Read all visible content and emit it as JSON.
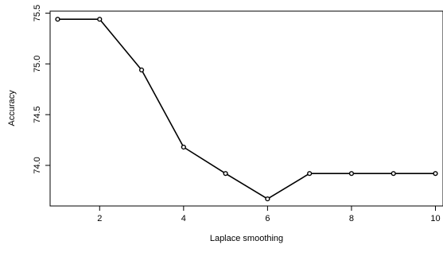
{
  "chart_data": {
    "type": "line",
    "title": "",
    "xlabel": "Laplace smoothing",
    "ylabel": "Accuracy",
    "x": [
      1,
      2,
      3,
      4,
      5,
      6,
      7,
      8,
      9,
      10
    ],
    "series": [
      {
        "values": [
          75.44,
          75.44,
          74.94,
          74.18,
          73.92,
          73.67,
          73.92,
          73.92,
          73.92,
          73.92
        ],
        "color": "#000000",
        "marker": "open-circle"
      }
    ],
    "xlim": [
      0.82,
      10.18
    ],
    "ylim": [
      73.6,
      75.52
    ],
    "xticks": [
      2,
      4,
      6,
      8,
      10
    ],
    "xtick_labels": [
      "2",
      "4",
      "6",
      "8",
      "10"
    ],
    "yticks": [
      74.0,
      74.5,
      75.0,
      75.5
    ],
    "ytick_labels": [
      "74.0",
      "74.5",
      "75.0",
      "75.5"
    ],
    "grid": false,
    "legend": "none"
  }
}
